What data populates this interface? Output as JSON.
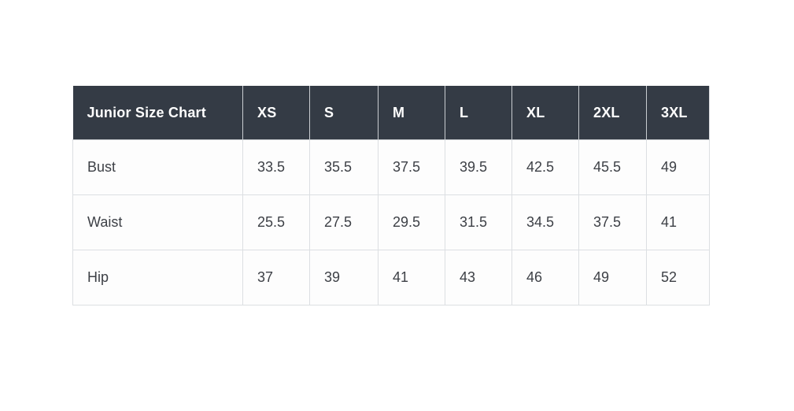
{
  "colors": {
    "page_background": "#ffffff",
    "header_background": "#343b45",
    "header_text": "#ffffff",
    "body_background": "#fdfdfd",
    "body_text": "#3d4046",
    "border": "#dcdfe2"
  },
  "size_chart": {
    "title": "Junior Size Chart",
    "columns": [
      "XS",
      "S",
      "M",
      "L",
      "XL",
      "2XL",
      "3XL"
    ],
    "rows": [
      {
        "label": "Bust",
        "values": [
          "33.5",
          "35.5",
          "37.5",
          "39.5",
          "42.5",
          "45.5",
          "49"
        ]
      },
      {
        "label": "Waist",
        "values": [
          "25.5",
          "27.5",
          "29.5",
          "31.5",
          "34.5",
          "37.5",
          "41"
        ]
      },
      {
        "label": "Hip",
        "values": [
          "37",
          "39",
          "41",
          "43",
          "46",
          "49",
          "52"
        ]
      }
    ]
  },
  "chart_data": {
    "type": "table",
    "title": "Junior Size Chart",
    "columns": [
      "Junior Size Chart",
      "XS",
      "S",
      "M",
      "L",
      "XL",
      "2XL",
      "3XL"
    ],
    "rows": [
      [
        "Bust",
        33.5,
        35.5,
        37.5,
        39.5,
        42.5,
        45.5,
        49
      ],
      [
        "Waist",
        25.5,
        27.5,
        29.5,
        31.5,
        34.5,
        37.5,
        41
      ],
      [
        "Hip",
        37,
        39,
        41,
        43,
        46,
        49,
        52
      ]
    ],
    "layout": "header row dark slate, first column holds row labels, light gray grid borders, white background"
  }
}
